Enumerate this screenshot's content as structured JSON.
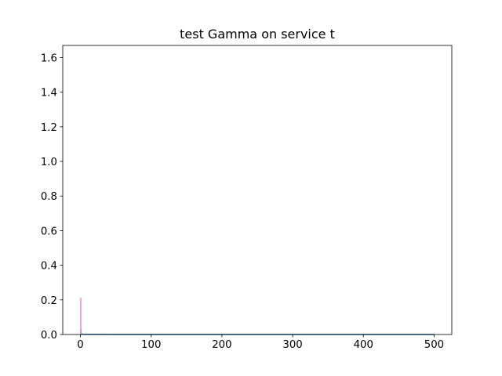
{
  "chart_data": {
    "type": "line",
    "title": "test Gamma on service t",
    "xlabel": "",
    "ylabel": "",
    "xlim": [
      -25,
      525
    ],
    "ylim": [
      0,
      1.67
    ],
    "x_ticks": [
      0,
      100,
      200,
      300,
      400,
      500
    ],
    "x_tick_labels": [
      "0",
      "100",
      "200",
      "300",
      "400",
      "500"
    ],
    "y_ticks": [
      0.0,
      0.2,
      0.4,
      0.6,
      0.8,
      1.0,
      1.2,
      1.4,
      1.6
    ],
    "y_tick_labels": [
      "0.0",
      "0.2",
      "0.4",
      "0.6",
      "0.8",
      "1.0",
      "1.2",
      "1.4",
      "1.6"
    ],
    "grid": false,
    "series": [
      {
        "color": "#1f77b4",
        "x": [
          0,
          1,
          2,
          3,
          5,
          10,
          50,
          100,
          200,
          300,
          400,
          500
        ],
        "y": [
          0.0,
          0.004,
          0.003,
          0.002,
          0.001,
          0.0005,
          0.0002,
          0.0001,
          0.0001,
          0.0001,
          0.0001,
          0.0001
        ]
      },
      {
        "color": "#e377c2",
        "x": [
          0.3,
          0.3,
          0.6,
          0.6,
          1.0,
          1.0
        ],
        "y": [
          0.0,
          0.21,
          0.21,
          0.03,
          0.03,
          0.0
        ]
      }
    ]
  }
}
